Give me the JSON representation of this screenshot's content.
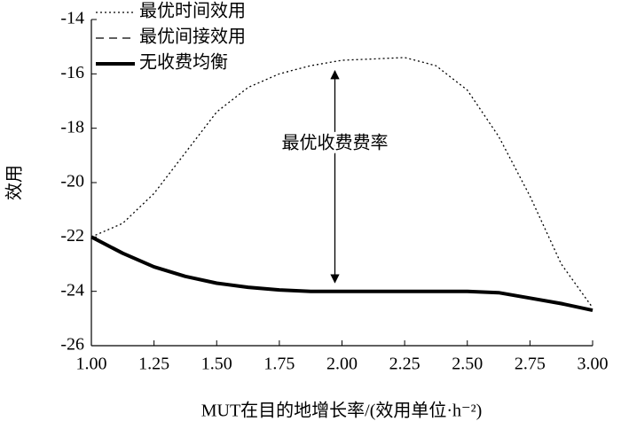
{
  "chart_data": {
    "type": "line",
    "xlabel": "MUT在目的地增长率/(效用单位·h⁻²)",
    "ylabel": "效用",
    "annotation": "最优收费费率",
    "x": [
      1.0,
      1.125,
      1.25,
      1.375,
      1.5,
      1.625,
      1.75,
      1.875,
      2.0,
      2.125,
      2.25,
      2.375,
      2.5,
      2.625,
      2.75,
      2.875,
      3.0
    ],
    "series": [
      {
        "name": "最优时间效用",
        "color": "#000",
        "style": "dotted",
        "width": 1.3,
        "values": [
          -22.0,
          -21.5,
          -20.4,
          -18.9,
          -17.4,
          -16.5,
          -16.0,
          -15.7,
          -15.5,
          -15.45,
          -15.4,
          -15.7,
          -16.6,
          -18.3,
          -20.5,
          -23.0,
          -24.6
        ]
      },
      {
        "name": "最优间接效用",
        "color": "#000",
        "style": "dashed",
        "width": 1.3,
        "values": [
          -22.0,
          -22.6,
          -23.1,
          -23.45,
          -23.7,
          -23.85,
          -23.95,
          -24.0,
          -24.0,
          -24.0,
          -24.0,
          -24.0,
          -24.0,
          -24.05,
          -24.25,
          -24.45,
          -24.7
        ]
      },
      {
        "name": "无收费均衡",
        "color": "#000",
        "style": "solid",
        "width": 4,
        "values": [
          -22.0,
          -22.6,
          -23.1,
          -23.45,
          -23.7,
          -23.85,
          -23.95,
          -24.0,
          -24.0,
          -24.0,
          -24.0,
          -24.0,
          -24.0,
          -24.05,
          -24.25,
          -24.45,
          -24.7
        ]
      }
    ],
    "xlim": [
      1.0,
      3.0
    ],
    "xticks": [
      {
        "value": 1.0,
        "label": "1.00"
      },
      {
        "value": 1.25,
        "label": "1.25"
      },
      {
        "value": 1.5,
        "label": "1.50"
      },
      {
        "value": 1.75,
        "label": "1.75"
      },
      {
        "value": 2.0,
        "label": "2.00"
      },
      {
        "value": 2.25,
        "label": "2.25"
      },
      {
        "value": 2.5,
        "label": "2.50"
      },
      {
        "value": 2.75,
        "label": "2.75"
      },
      {
        "value": 3.0,
        "label": "3.00"
      }
    ],
    "ylim": [
      -26,
      -14
    ],
    "yticks": [
      -26,
      -24,
      -22,
      -20,
      -18,
      -16,
      -14
    ],
    "annotation_x": 2.0
  }
}
